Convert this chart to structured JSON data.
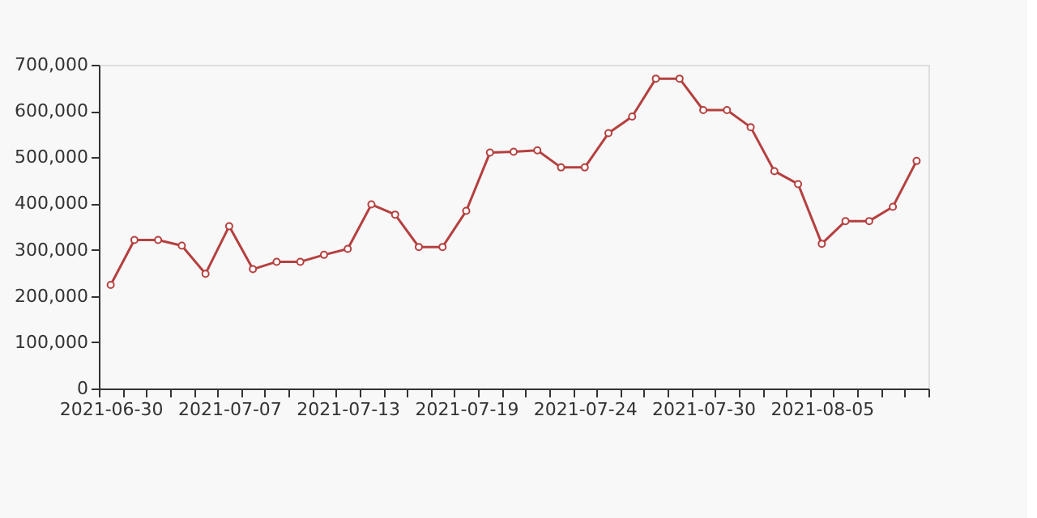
{
  "chart_data": {
    "type": "line",
    "categories": [
      "2021-06-30",
      null,
      null,
      null,
      null,
      "2021-07-07",
      null,
      null,
      null,
      null,
      "2021-07-13",
      null,
      null,
      null,
      null,
      "2021-07-19",
      null,
      null,
      null,
      null,
      "2021-07-24",
      null,
      null,
      null,
      null,
      "2021-07-30",
      null,
      null,
      null,
      null,
      "2021-08-05",
      null,
      null,
      null,
      null
    ],
    "series": [
      {
        "color": "#b5403f",
        "values": [
          224000,
          321000,
          321000,
          309000,
          248000,
          351000,
          258000,
          274000,
          274000,
          289000,
          302000,
          398000,
          376000,
          306000,
          306000,
          384000,
          510000,
          512000,
          515000,
          478000,
          478000,
          552000,
          588000,
          670000,
          670000,
          602000,
          602000,
          565000,
          470000,
          442000,
          313000,
          362000,
          362000,
          393000,
          492000
        ]
      }
    ],
    "ylim": [
      0,
      700000
    ],
    "yticks": [
      0,
      {
        "value": 100000,
        "label": "100,000"
      },
      {
        "value": 200000,
        "label": "200,000"
      },
      {
        "value": 300000,
        "label": "300,000"
      },
      {
        "value": 400000,
        "label": "400,000"
      },
      {
        "value": 500000,
        "label": "500,000"
      },
      {
        "value": 600000,
        "label": "600,000"
      },
      {
        "value": 700000,
        "label": "700,000"
      }
    ],
    "grid": false,
    "marker": "circle",
    "line_style": "solid"
  }
}
